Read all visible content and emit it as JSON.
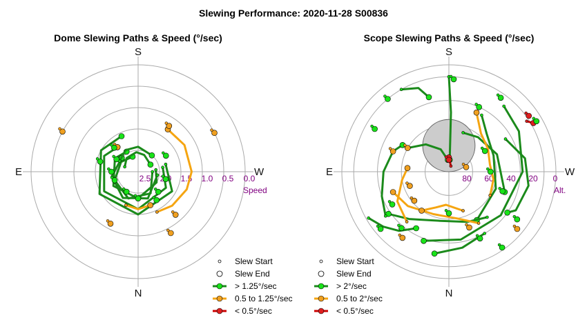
{
  "figure_title": "Slewing Performance: 2020-11-28 S00836",
  "colors": {
    "green": "#1b8a1b",
    "green_marker": "#19e319",
    "orange": "#f5a511",
    "orange_marker": "#f0a020",
    "red": "#cc0000",
    "red_marker": "#e02020",
    "ring": "#aaaaaa",
    "tick_label": "#800080",
    "exclusion_zone": "#cccccc"
  },
  "cardinals": {
    "top": "S",
    "bottom": "N",
    "left": "E",
    "right": "W"
  },
  "dome": {
    "title": "Dome Slewing Paths & Speed (°/sec)",
    "radial_label": "Speed",
    "radial_ticks": [
      "2.5",
      "2.0",
      "1.5",
      "1.0",
      "0.5",
      "0.0"
    ],
    "legend": [
      {
        "label": "Slew Start",
        "marker": "start"
      },
      {
        "label": "Slew End",
        "marker": "end"
      },
      {
        "label": "> 1.25°/sec",
        "marker": "green"
      },
      {
        "label": "0.5 to 1.25°/sec",
        "marker": "orange"
      },
      {
        "label": "< 0.5°/sec",
        "marker": "red"
      }
    ]
  },
  "scope": {
    "title": "Scope Slewing Paths & Speed (°/sec)",
    "radial_label": "Alt.",
    "radial_ticks": [
      "80",
      "60",
      "40",
      "20",
      "0"
    ],
    "legend": [
      {
        "label": "Slew Start",
        "marker": "start"
      },
      {
        "label": "Slew End",
        "marker": "end"
      },
      {
        "label": "> 2°/sec",
        "marker": "green"
      },
      {
        "label": "0.5 to 2°/sec",
        "marker": "orange"
      },
      {
        "label": "< 0.5°/sec",
        "marker": "red"
      }
    ]
  },
  "chart_data": [
    {
      "type": "polar-path",
      "title": "Dome Slewing Paths & Speed (°/sec)",
      "theta_units": "azimuth degrees (S at top, W at right)",
      "r_units": "speed °/sec (3.0 at center, 0.0 at outer ring)",
      "rlim": [
        3.0,
        0.0
      ],
      "paths": [
        {
          "cat": "green",
          "az": [
            84,
            120,
            180,
            240,
            300,
            330
          ],
          "r": [
            2.5,
            2.4,
            2.25,
            2.2,
            2.25,
            2.35
          ]
        },
        {
          "cat": "green",
          "az": [
            80,
            120,
            180,
            240,
            295,
            320
          ],
          "r": [
            2.3,
            2.1,
            1.95,
            1.9,
            1.95,
            2.1
          ]
        },
        {
          "cat": "green",
          "az": [
            75,
            120,
            180,
            240,
            300,
            335
          ],
          "r": [
            2.2,
            1.9,
            1.8,
            1.75,
            1.8,
            1.9
          ]
        },
        {
          "cat": "green",
          "az": [
            90,
            150,
            200,
            250,
            300,
            340
          ],
          "r": [
            2.6,
            2.3,
            2.2,
            2.3,
            2.45,
            2.55
          ]
        },
        {
          "cat": "green",
          "az": [
            100,
            160,
            210,
            260,
            310
          ],
          "r": [
            2.45,
            2.2,
            2.15,
            2.25,
            2.4
          ]
        },
        {
          "cat": "green",
          "az": [
            290,
            320,
            355,
            20,
            60
          ],
          "r": [
            2.6,
            2.5,
            2.45,
            2.5,
            2.6
          ]
        },
        {
          "cat": "green",
          "az": [
            300,
            330,
            0,
            40
          ],
          "r": [
            2.4,
            2.3,
            2.3,
            2.4
          ]
        },
        {
          "cat": "orange",
          "az": [
            155,
            135,
            110,
            90,
            60,
            35
          ],
          "r": [
            1.75,
            1.65,
            1.55,
            1.5,
            1.5,
            1.55
          ]
        },
        {
          "cat": "orange",
          "az": [
            200,
            180,
            160
          ],
          "r": [
            2.0,
            1.95,
            2.0
          ]
        }
      ],
      "markers": [
        {
          "cat": "orange",
          "az": 152,
          "r": 1.05
        },
        {
          "cat": "orange",
          "az": 208,
          "r": 1.35
        },
        {
          "cat": "orange",
          "az": 139,
          "r": 1.4
        },
        {
          "cat": "orange",
          "az": 63,
          "r": 0.6
        },
        {
          "cat": "orange",
          "az": 34,
          "r": 1.45
        },
        {
          "cat": "orange",
          "az": 298,
          "r": 0.6
        },
        {
          "cat": "orange",
          "az": 320,
          "r": 2.1
        },
        {
          "cat": "green",
          "az": 147,
          "r": 2.05
        },
        {
          "cat": "green",
          "az": 135,
          "r": 2.2
        },
        {
          "cat": "green",
          "az": 210,
          "r": 2.35
        },
        {
          "cat": "green",
          "az": 285,
          "r": 1.9
        },
        {
          "cat": "green",
          "az": 300,
          "r": 2.3
        },
        {
          "cat": "green",
          "az": 250,
          "r": 2.3
        },
        {
          "cat": "green",
          "az": 60,
          "r": 2.1
        },
        {
          "cat": "green",
          "az": 105,
          "r": 2.2
        },
        {
          "cat": "green",
          "az": 180,
          "r": 2.25
        },
        {
          "cat": "green",
          "az": 270,
          "r": 2.25
        },
        {
          "cat": "green",
          "az": 315,
          "r": 2.05
        }
      ]
    },
    {
      "type": "polar-path",
      "title": "Scope Slewing Paths & Speed (°/sec)",
      "theta_units": "azimuth degrees (S at top, W at right)",
      "r_units": "altitude degrees (90 at center, 0 at outer ring)",
      "rlim": [
        90,
        0
      ],
      "exclusion_zone": {
        "az": 0,
        "alt": 68,
        "radius_deg": 22
      },
      "paths": [
        {
          "cat": "green",
          "az": [
            0,
            2,
            4
          ],
          "alt": [
            10,
            40,
            80
          ]
        },
        {
          "cat": "green",
          "az": [
            40,
            60,
            90,
            130,
            170,
            200
          ],
          "alt": [
            18,
            22,
            28,
            33,
            32,
            28
          ]
        },
        {
          "cat": "green",
          "az": [
            30,
            45,
            70,
            110,
            150
          ],
          "alt": [
            35,
            45,
            50,
            48,
            43
          ]
        },
        {
          "cat": "green",
          "az": [
            20,
            40,
            70,
            110
          ],
          "alt": [
            55,
            52,
            47,
            40
          ]
        },
        {
          "cat": "green",
          "az": [
            140,
            160,
            190,
            220,
            235
          ],
          "alt": [
            40,
            45,
            48,
            38,
            28
          ]
        },
        {
          "cat": "green",
          "az": [
            60,
            80,
            100,
            120,
            125
          ],
          "alt": [
            35,
            25,
            22,
            25,
            30
          ]
        },
        {
          "cat": "green",
          "az": [
            235,
            250,
            270,
            290,
            300
          ],
          "alt": [
            25,
            30,
            35,
            40,
            45
          ]
        },
        {
          "cat": "green",
          "az": [
            300,
            320,
            340,
            355
          ],
          "alt": [
            50,
            60,
            70,
            80
          ]
        },
        {
          "cat": "green",
          "az": [
            150,
            170,
            190
          ],
          "alt": [
            30,
            25,
            20
          ]
        },
        {
          "cat": "green",
          "az": [
            330,
            340,
            345
          ],
          "alt": [
            10,
            15,
            25
          ]
        },
        {
          "cat": "green",
          "az": [
            240,
            230,
            220,
            210
          ],
          "alt": [
            12,
            18,
            25,
            35
          ]
        },
        {
          "cat": "orange",
          "az": [
            150,
            170,
            200,
            230,
            250
          ],
          "alt": [
            40,
            50,
            52,
            45,
            40
          ]
        },
        {
          "cat": "orange",
          "az": [
            120,
            100,
            80,
            60,
            40,
            25
          ],
          "alt": [
            50,
            52,
            55,
            52,
            48,
            35
          ]
        },
        {
          "cat": "orange",
          "az": [
            220,
            240,
            260,
            275
          ],
          "alt": [
            35,
            40,
            50,
            55
          ]
        },
        {
          "cat": "orange",
          "az": [
            160,
            185,
            200,
            215
          ],
          "alt": [
            55,
            62,
            58,
            50
          ]
        },
        {
          "cat": "red",
          "az": [
            20,
            0
          ],
          "alt": [
            85,
            78
          ]
        },
        {
          "cat": "red",
          "az": [
            57,
            60
          ],
          "alt": [
            12,
            8
          ]
        }
      ],
      "markers": [
        {
          "cat": "green",
          "az": 3,
          "alt": 12
        },
        {
          "cat": "green",
          "az": 25,
          "alt": 30
        },
        {
          "cat": "green",
          "az": 35,
          "alt": 14
        },
        {
          "cat": "green",
          "az": 60,
          "alt": 5
        },
        {
          "cat": "green",
          "az": 110,
          "alt": 42
        },
        {
          "cat": "green",
          "az": 125,
          "alt": 20
        },
        {
          "cat": "green",
          "az": 145,
          "alt": 12
        },
        {
          "cat": "green",
          "az": 155,
          "alt": 28
        },
        {
          "cat": "green",
          "az": 230,
          "alt": 15
        },
        {
          "cat": "green",
          "az": 240,
          "alt": 35
        },
        {
          "cat": "green",
          "az": 220,
          "alt": 28
        },
        {
          "cat": "green",
          "az": 300,
          "alt": 18
        },
        {
          "cat": "green",
          "az": 320,
          "alt": 10
        },
        {
          "cat": "green",
          "az": 60,
          "alt": 55
        },
        {
          "cat": "green",
          "az": 180,
          "alt": 55
        },
        {
          "cat": "green",
          "az": 90,
          "alt": 55
        },
        {
          "cat": "orange",
          "az": 215,
          "alt": 22
        },
        {
          "cat": "orange",
          "az": 230,
          "alt": 52
        },
        {
          "cat": "orange",
          "az": 250,
          "alt": 55
        },
        {
          "cat": "orange",
          "az": 160,
          "alt": 40
        },
        {
          "cat": "orange",
          "az": 300,
          "alt": 50
        },
        {
          "cat": "orange",
          "az": 130,
          "alt": 15
        },
        {
          "cat": "orange",
          "az": 290,
          "alt": 40
        },
        {
          "cat": "orange",
          "az": 75,
          "alt": 75
        },
        {
          "cat": "red",
          "az": 55,
          "alt": 8
        },
        {
          "cat": "red",
          "az": 0,
          "alt": 80
        }
      ]
    }
  ]
}
